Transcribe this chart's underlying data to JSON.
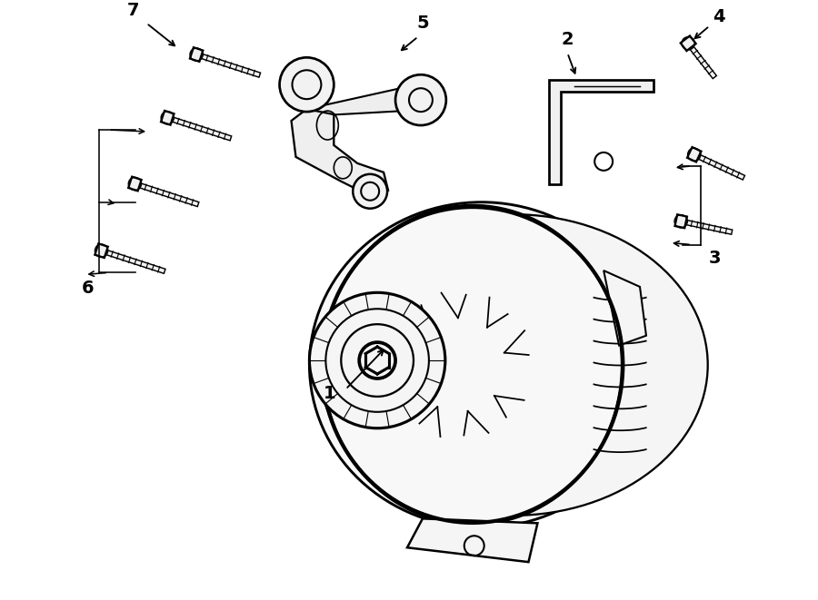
{
  "bg_color": "#ffffff",
  "line_color": "#000000",
  "line_width": 1.5
}
